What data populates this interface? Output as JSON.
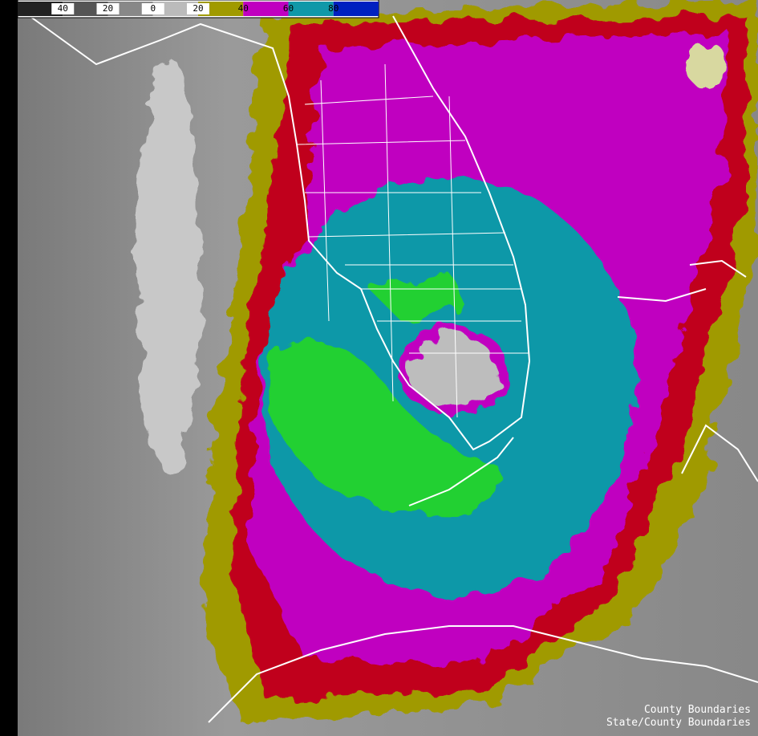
{
  "legend": {
    "labels": [
      "40",
      "20",
      "0",
      "20",
      "40",
      "60",
      "80"
    ]
  },
  "captions": [
    "County Boundaries",
    "State/County Boundaries"
  ]
}
